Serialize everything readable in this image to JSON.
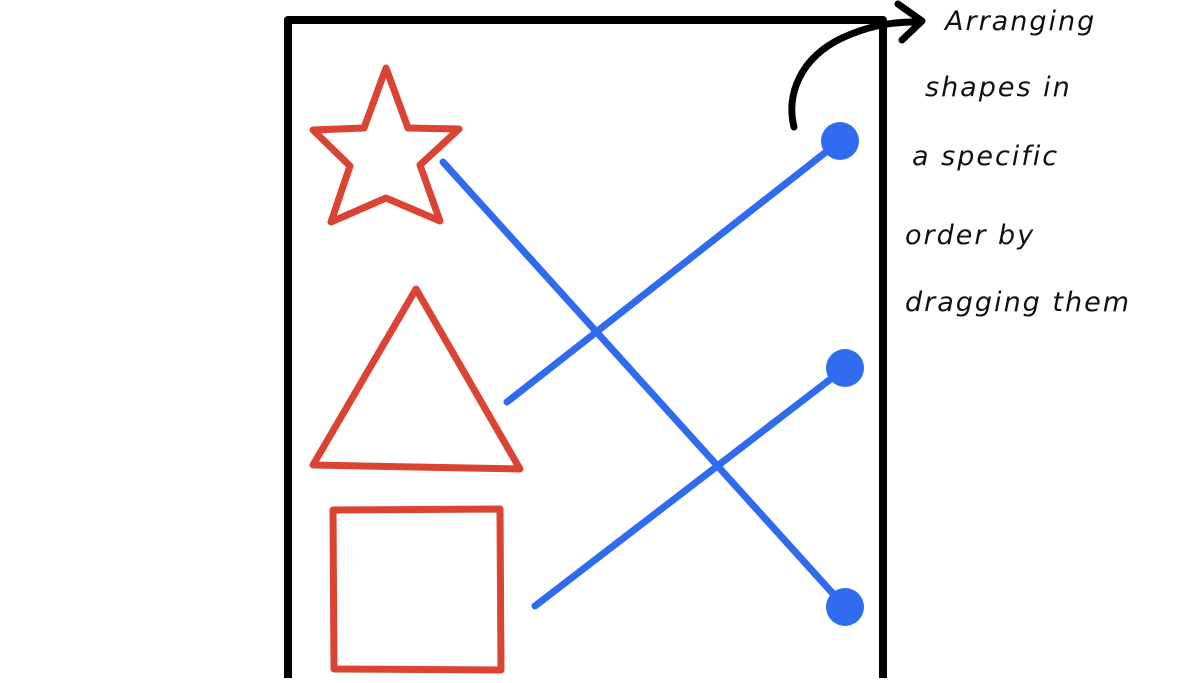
{
  "colors": {
    "shape_outline": "#DB4332",
    "connector": "#2F6BEF",
    "frame": "#000000",
    "annotation": "#111111",
    "background": "#FFFFFF"
  },
  "shapes": [
    {
      "kind": "star",
      "icon": "star-icon"
    },
    {
      "kind": "triangle",
      "icon": "triangle-icon"
    },
    {
      "kind": "square",
      "icon": "square-icon"
    }
  ],
  "connections": [
    {
      "from": "star",
      "to_target": 3
    },
    {
      "from": "triangle",
      "to_target": 1
    },
    {
      "from": "square",
      "to_target": 2
    }
  ],
  "annotation": {
    "lines": [
      "Arranging",
      "shapes in",
      "a specific",
      "order by",
      "dragging them"
    ]
  }
}
